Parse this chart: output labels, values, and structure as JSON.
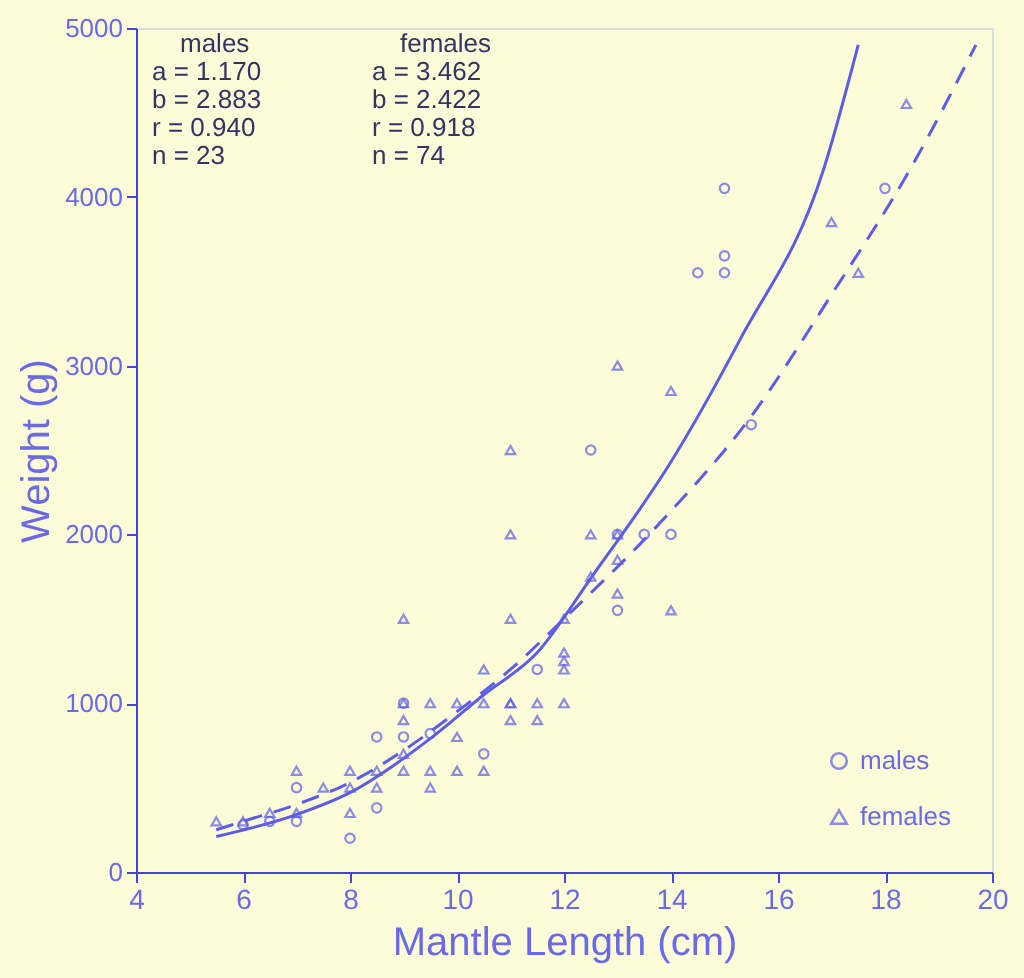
{
  "chart_data": {
    "type": "scatter",
    "xlabel": "Mantle Length (cm)",
    "ylabel": "Weight (g)",
    "xlim": [
      4,
      20
    ],
    "xticks": [
      4,
      6,
      8,
      10,
      12,
      14,
      16,
      18,
      20
    ],
    "ylim": [
      0,
      5000
    ],
    "yticks": [
      0,
      1000,
      2000,
      3000,
      4000,
      5000
    ],
    "grid": false,
    "legend": "bottom right",
    "annotations": [
      "males",
      "a = 1.170",
      "b = 2.883",
      "r = 0.940",
      "n = 23",
      "females",
      "a = 3.462",
      "b = 2.422",
      "r = 0.918",
      "n = 74"
    ],
    "series": [
      {
        "name": "males",
        "marker": "circle",
        "color": "#5c5ce6",
        "x": [
          6,
          6.5,
          7,
          7,
          8,
          8.5,
          8.5,
          9,
          9,
          9.5,
          10.5,
          11.5,
          12.5,
          13,
          13,
          13.5,
          14,
          14.5,
          15,
          15,
          15,
          15.5,
          18
        ],
        "values": [
          280,
          300,
          300,
          500,
          200,
          380,
          800,
          800,
          1000,
          820,
          700,
          1200,
          2500,
          1550,
          2000,
          2000,
          2000,
          3550,
          3550,
          3650,
          4050,
          2650,
          4050
        ]
      },
      {
        "name": "females",
        "marker": "triangle",
        "color": "#5c5ce6",
        "x": [
          5.5,
          6,
          6.5,
          7,
          7,
          7.5,
          8,
          8,
          8,
          8.5,
          8.5,
          9,
          9,
          9,
          9,
          9,
          9.5,
          9.5,
          9.5,
          10,
          10,
          10,
          10.5,
          10.5,
          10.5,
          11,
          11,
          11,
          11,
          11,
          11,
          11.5,
          11.5,
          12,
          12,
          12,
          12,
          12,
          12.5,
          12.5,
          13,
          13,
          13,
          13,
          14,
          14,
          17,
          17.5,
          18.4
        ],
        "values": [
          300,
          300,
          350,
          350,
          600,
          500,
          350,
          500,
          600,
          500,
          600,
          600,
          700,
          900,
          1000,
          1500,
          500,
          600,
          1000,
          600,
          800,
          1000,
          600,
          1000,
          1200,
          900,
          1000,
          1500,
          2000,
          2500,
          1000,
          900,
          1000,
          1000,
          1200,
          1250,
          1300,
          1500,
          1750,
          2000,
          1650,
          1850,
          2000,
          3000,
          1550,
          2850,
          3850,
          3550,
          4550
        ]
      },
      {
        "type": "line",
        "line_style": "solid",
        "color": "#5c5ce6",
        "x": [
          5.5,
          7,
          8,
          9.5,
          10.5,
          11.5,
          12.5,
          14,
          15.3,
          16.85,
          17.5
        ],
        "values": [
          210,
          340,
          470,
          790,
          1050,
          1300,
          1740,
          2430,
          3160,
          4160,
          4900
        ]
      },
      {
        "type": "line",
        "line_style": "dashed",
        "color": "#5c5ce6",
        "x": [
          5.5,
          6,
          7,
          8,
          9,
          10,
          11,
          12,
          13.8,
          15.5,
          17,
          18.5,
          19.7
        ],
        "values": [
          250,
          300,
          400,
          530,
          720,
          950,
          1200,
          1500,
          2070,
          2700,
          3420,
          4180,
          4900
        ]
      }
    ]
  }
}
